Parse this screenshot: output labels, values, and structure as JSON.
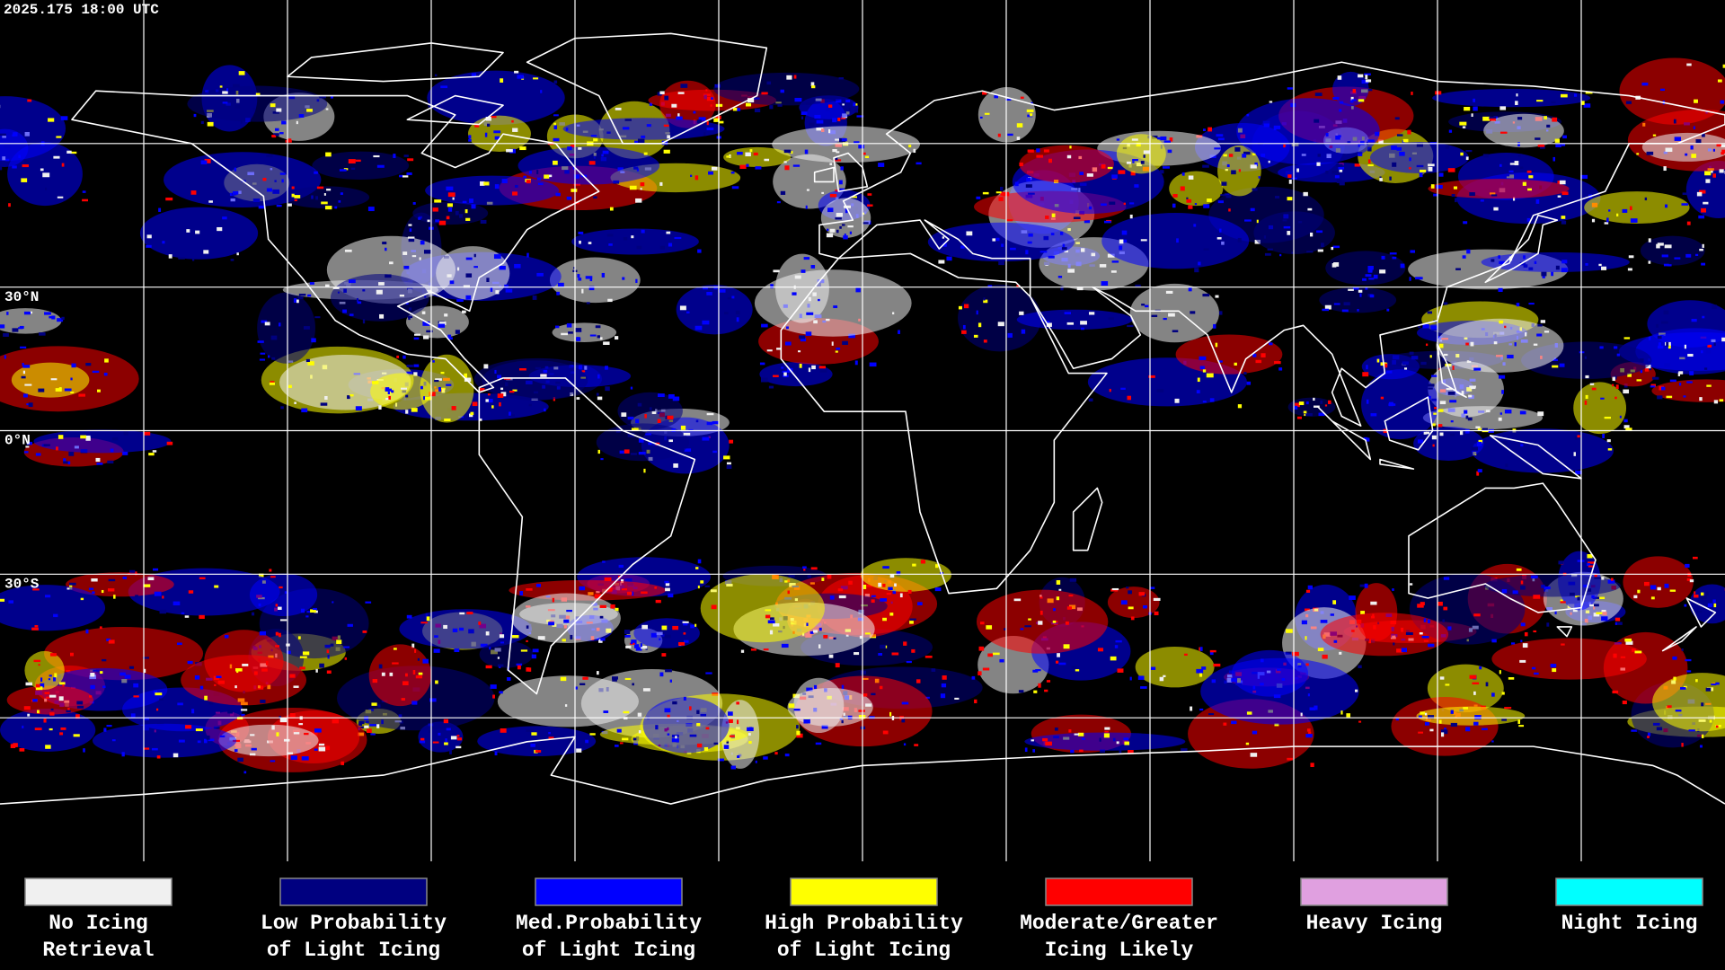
{
  "timestamp": "2025.175 18:00 UTC",
  "latitude_labels": [
    "30°N",
    "0°N",
    "30°S"
  ],
  "legend": [
    {
      "label": [
        "No Icing",
        "Retrieval"
      ],
      "color": "#f0f0f0"
    },
    {
      "label": [
        "Low Probability",
        "of Light Icing"
      ],
      "color": "#000080"
    },
    {
      "label": [
        "Med.Probability",
        "of Light Icing"
      ],
      "color": "#0000ff"
    },
    {
      "label": [
        "High Probability",
        "of Light Icing"
      ],
      "color": "#ffff00"
    },
    {
      "label": [
        "Moderate/Greater",
        "Icing Likely"
      ],
      "color": "#ff0000"
    },
    {
      "label": [
        "Heavy Icing"
      ],
      "color": "#e0a0e0"
    },
    {
      "label": [
        "Night Icing"
      ],
      "color": "#00ffff"
    }
  ]
}
